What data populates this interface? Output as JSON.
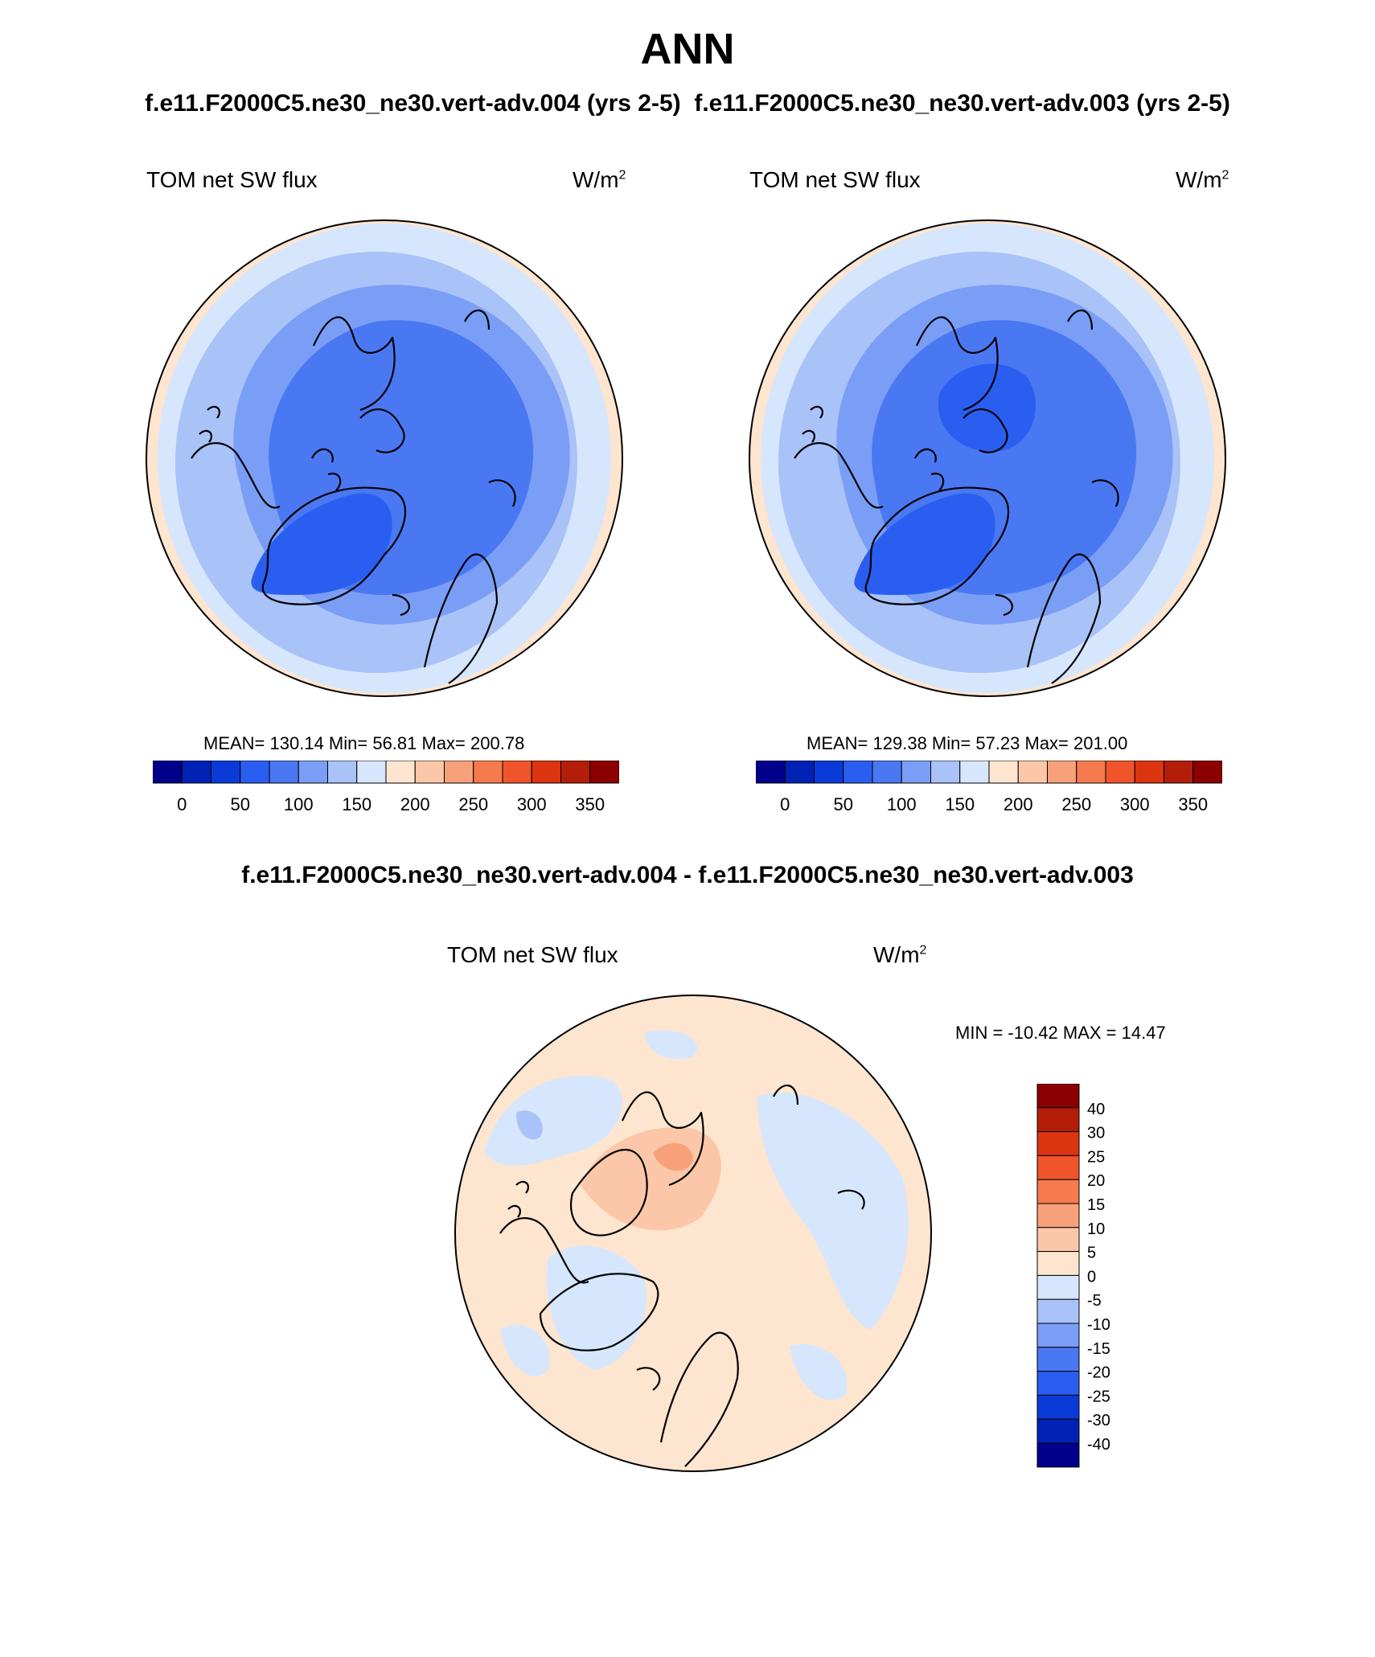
{
  "title": "ANN",
  "subtitle": "f.e11.F2000C5.ne30_ne30.vert-adv.004 (yrs 2-5)  f.e11.F2000C5.ne30_ne30.vert-adv.003 (yrs 2-5)",
  "panels": [
    {
      "label": "TOM net SW flux",
      "units_base": "W/m",
      "units_exp": "2",
      "stats": "MEAN= 130.14  Min=  56.81  Max= 200.78",
      "colorbar_ticks": [
        "0",
        "50",
        "100",
        "150",
        "200",
        "250",
        "300",
        "350"
      ]
    },
    {
      "label": "TOM net SW flux",
      "units_base": "W/m",
      "units_exp": "2",
      "stats": "MEAN= 129.38  Min=  57.23  Max= 201.00",
      "colorbar_ticks": [
        "0",
        "50",
        "100",
        "150",
        "200",
        "250",
        "300",
        "350"
      ]
    }
  ],
  "difference": {
    "title": "f.e11.F2000C5.ne30_ne30.vert-adv.004 - f.e11.F2000C5.ne30_ne30.vert-adv.003",
    "label": "TOM net SW flux",
    "units_base": "W/m",
    "units_exp": "2",
    "stats": "MIN = -10.42 MAX =  14.47",
    "colorbar_ticks": [
      "40",
      "30",
      "25",
      "20",
      "15",
      "10",
      "5",
      "0",
      "-5",
      "-10",
      "-15",
      "-20",
      "-25",
      "-30",
      "-40"
    ]
  },
  "colors": {
    "scale": [
      "#00008b",
      "#0022b4",
      "#0a3bd8",
      "#2a5ef0",
      "#4a78f2",
      "#7a9ef5",
      "#a9c2f8",
      "#d6e6fc",
      "#fde5d0",
      "#fbc7a8",
      "#f8a07a",
      "#f57a4e",
      "#f0542a",
      "#dc3510",
      "#b41e08",
      "#8b0000"
    ],
    "diff_scale": [
      "#8b0000",
      "#b41e08",
      "#dc3510",
      "#f0542a",
      "#f57a4e",
      "#f8a07a",
      "#fbc7a8",
      "#fde5d0",
      "#d6e6fc",
      "#a9c2f8",
      "#7a9ef5",
      "#4a78f2",
      "#2a5ef0",
      "#0a3bd8",
      "#0022b4",
      "#00008b"
    ]
  }
}
